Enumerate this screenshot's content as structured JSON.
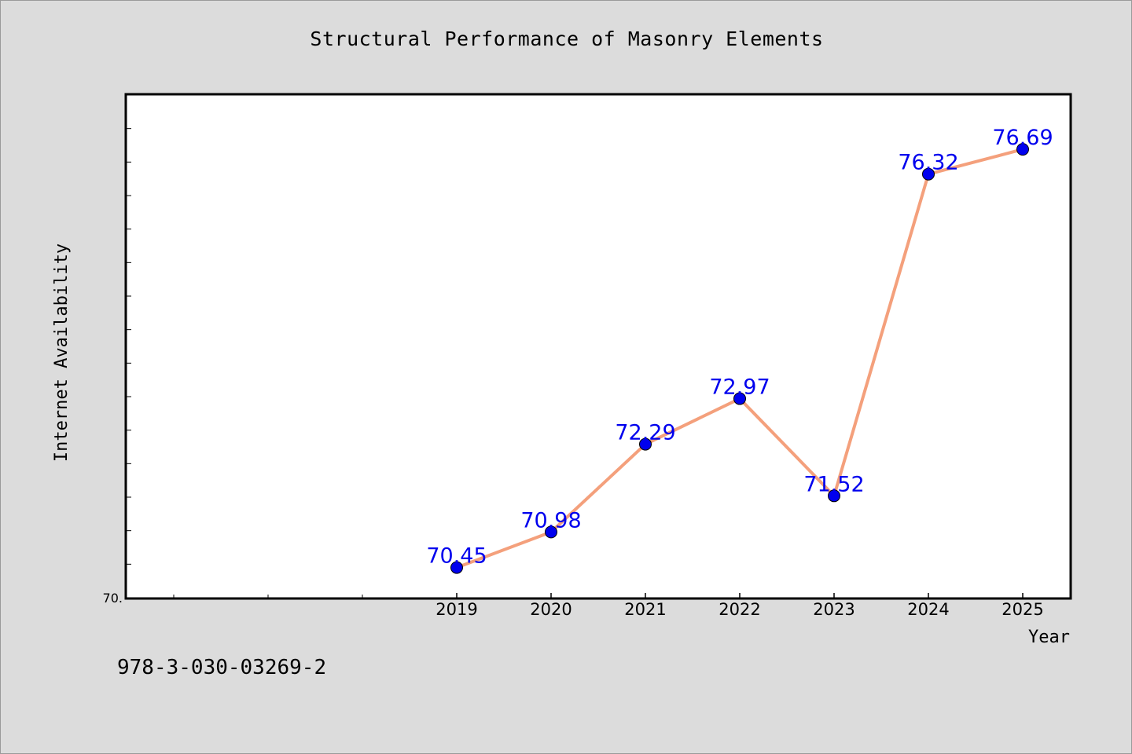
{
  "chart_data": {
    "type": "line",
    "title": "Structural Performance of Masonry Elements",
    "xlabel": "Year",
    "ylabel": "Internet Availability",
    "categories": [
      "2019",
      "2020",
      "2021",
      "2022",
      "2023",
      "2024",
      "2025"
    ],
    "series": [
      {
        "values": [
          70.45,
          70.98,
          72.29,
          72.97,
          71.52,
          76.32,
          76.69
        ],
        "data_labels": [
          "70.45",
          "70.98",
          "72.29",
          "72.97",
          "71.52",
          "76.32",
          "76.69"
        ]
      }
    ],
    "ylim": [
      70.0,
      77.5
    ],
    "y_tick_labels": [
      "70."
    ],
    "line_color": "#f4a07c",
    "marker_color": "#0000ee",
    "label_color": "#0000ee",
    "grid": false,
    "footer_text": "978-3-030-03269-2"
  }
}
